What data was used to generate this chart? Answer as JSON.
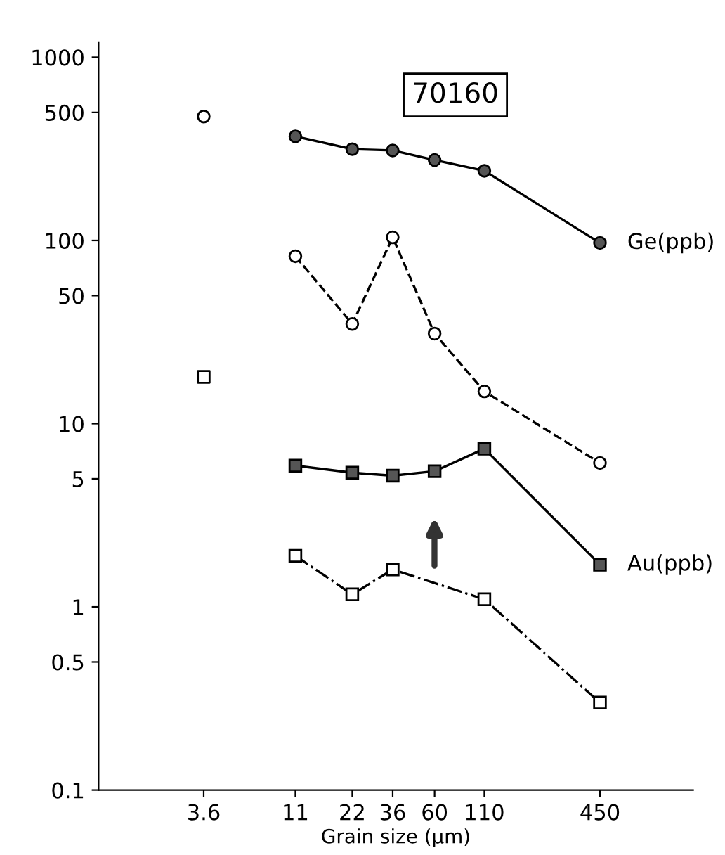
{
  "chart_data": {
    "type": "line",
    "title": "70160",
    "xlabel": "Grain size (μm)",
    "log": "xy",
    "xlim": [
      1,
      1400
    ],
    "xticks": [
      3.6,
      11,
      22,
      36,
      60,
      110,
      450
    ],
    "ylim": [
      0.1,
      1200
    ],
    "yticks": [
      0.1,
      0.5,
      1,
      5,
      10,
      50,
      100,
      500,
      1000
    ],
    "grid": false,
    "legend": false,
    "series": [
      {
        "x": [
          11,
          22,
          36,
          60,
          110,
          450
        ],
        "values": [
          370,
          315,
          310,
          275,
          240,
          97
        ],
        "color": "#555555",
        "marker": "circle",
        "line_style": "solid"
      },
      {
        "x": [
          11,
          22,
          36,
          60,
          110,
          450
        ],
        "values": [
          82,
          35,
          104,
          31,
          15,
          6.1
        ],
        "color": "#ffffff",
        "marker": "circle",
        "line_style": "dashed"
      },
      {
        "x": [
          11,
          22,
          36,
          60,
          110,
          450
        ],
        "values": [
          5.9,
          5.4,
          5.2,
          5.5,
          7.3,
          1.7
        ],
        "color": "#555555",
        "marker": "square",
        "line_style": "solid"
      },
      {
        "x": [
          11,
          22,
          36,
          110,
          450
        ],
        "values": [
          1.9,
          1.17,
          1.6,
          1.1,
          0.3
        ],
        "color": "#ffffff",
        "marker": "square",
        "line_style": "dashdot"
      },
      {
        "type": "scatter",
        "x": [
          3.6
        ],
        "values": [
          475
        ],
        "color": "#ffffff",
        "marker": "circle"
      },
      {
        "type": "scatter",
        "x": [
          3.6
        ],
        "values": [
          18
        ],
        "color": "#ffffff",
        "marker": "square"
      }
    ],
    "annotations": [
      {
        "text": "Ge(ppb)",
        "x": 450,
        "y": 97
      },
      {
        "text": "Au(ppb)",
        "x": 450,
        "y": 1.7
      }
    ]
  }
}
